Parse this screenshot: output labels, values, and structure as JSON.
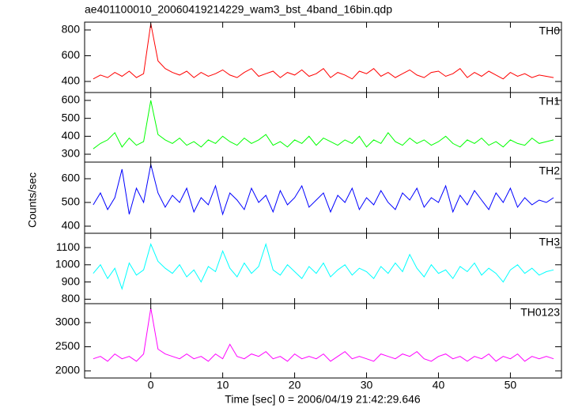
{
  "chart_data": {
    "type": "line",
    "title": "ae401100010_20060419214229_wam3_bst_4band_16bin.qdp",
    "xlabel": "Time [sec] 0 = 2006/04/19 21:42:29.646",
    "ylabel": "Counts/sec",
    "xlim": [
      -9.2,
      57.1
    ],
    "xticks": [
      0,
      10,
      20,
      30,
      40,
      50
    ],
    "x": [
      -8,
      -7,
      -6,
      -5,
      -4,
      -3,
      -2,
      -1,
      0,
      1,
      2,
      3,
      4,
      5,
      6,
      7,
      8,
      9,
      10,
      11,
      12,
      13,
      14,
      15,
      16,
      17,
      18,
      19,
      20,
      21,
      22,
      23,
      24,
      25,
      26,
      27,
      28,
      29,
      30,
      31,
      32,
      33,
      34,
      35,
      36,
      37,
      38,
      39,
      40,
      41,
      42,
      43,
      44,
      45,
      46,
      47,
      48,
      49,
      50,
      51,
      52,
      53,
      54,
      55,
      56
    ],
    "series": [
      {
        "name": "TH0",
        "color": "#ff0000",
        "ylim": [
          314,
          861
        ],
        "yticks": [
          400,
          600,
          800
        ],
        "values": [
          420,
          450,
          430,
          470,
          440,
          480,
          430,
          460,
          850,
          560,
          500,
          470,
          450,
          480,
          430,
          470,
          440,
          460,
          490,
          450,
          430,
          470,
          500,
          440,
          460,
          480,
          430,
          470,
          450,
          490,
          440,
          460,
          500,
          430,
          470,
          450,
          420,
          480,
          460,
          500,
          440,
          470,
          430,
          460,
          490,
          450,
          430,
          470,
          480,
          440,
          460,
          500,
          430,
          470,
          440,
          480,
          450,
          420,
          470,
          440,
          460,
          430,
          450,
          440,
          430
        ]
      },
      {
        "name": "TH1",
        "color": "#00ff00",
        "ylim": [
          256,
          644
        ],
        "yticks": [
          300,
          400,
          500,
          600
        ],
        "values": [
          330,
          360,
          380,
          420,
          340,
          390,
          350,
          370,
          600,
          410,
          380,
          360,
          390,
          350,
          370,
          340,
          380,
          360,
          400,
          370,
          350,
          390,
          360,
          380,
          410,
          350,
          370,
          340,
          380,
          360,
          400,
          350,
          390,
          370,
          350,
          380,
          360,
          400,
          340,
          380,
          360,
          420,
          370,
          350,
          390,
          360,
          380,
          350,
          370,
          400,
          360,
          340,
          380,
          360,
          390,
          350,
          370,
          340,
          380,
          360,
          350,
          390,
          360,
          370,
          380
        ]
      },
      {
        "name": "TH2",
        "color": "#0000ff",
        "ylim": [
          370,
          670
        ],
        "yticks": [
          400,
          500,
          600
        ],
        "values": [
          490,
          540,
          470,
          520,
          640,
          450,
          560,
          500,
          660,
          540,
          480,
          530,
          500,
          560,
          460,
          520,
          490,
          570,
          450,
          540,
          510,
          470,
          560,
          500,
          530,
          460,
          550,
          490,
          520,
          570,
          480,
          510,
          540,
          460,
          530,
          500,
          560,
          470,
          520,
          490,
          550,
          500,
          470,
          540,
          510,
          560,
          480,
          520,
          500,
          570,
          460,
          530,
          490,
          550,
          510,
          470,
          540,
          500,
          560,
          480,
          520,
          490,
          510,
          500,
          520
        ]
      },
      {
        "name": "TH3",
        "color": "#00ffff",
        "ylim": [
          774,
          1183
        ],
        "yticks": [
          800,
          900,
          1000,
          1100
        ],
        "values": [
          950,
          1000,
          920,
          980,
          860,
          1010,
          940,
          970,
          1120,
          1020,
          980,
          950,
          1000,
          930,
          970,
          900,
          990,
          960,
          1080,
          980,
          930,
          1010,
          950,
          990,
          1120,
          970,
          940,
          1000,
          960,
          920,
          990,
          950,
          1010,
          930,
          970,
          1000,
          940,
          980,
          960,
          920,
          990,
          950,
          1010,
          960,
          1060,
          980,
          930,
          1000,
          950,
          970,
          920,
          990,
          960,
          1010,
          940,
          980,
          950,
          900,
          970,
          1000,
          950,
          980,
          940,
          960,
          970
        ]
      },
      {
        "name": "TH0123",
        "color": "#ff00ff",
        "ylim": [
          1852,
          3393
        ],
        "yticks": [
          2000,
          2500,
          3000
        ],
        "values": [
          2250,
          2300,
          2200,
          2350,
          2250,
          2300,
          2200,
          2350,
          3300,
          2450,
          2350,
          2300,
          2250,
          2350,
          2250,
          2300,
          2200,
          2350,
          2250,
          2550,
          2300,
          2250,
          2350,
          2300,
          2400,
          2250,
          2300,
          2200,
          2350,
          2250,
          2300,
          2250,
          2350,
          2200,
          2300,
          2400,
          2250,
          2300,
          2250,
          2200,
          2350,
          2300,
          2250,
          2350,
          2300,
          2400,
          2250,
          2200,
          2300,
          2350,
          2250,
          2300,
          2200,
          2300,
          2250,
          2350,
          2200,
          2300,
          2250,
          2350,
          2200,
          2300,
          2250,
          2300,
          2250
        ]
      }
    ]
  }
}
